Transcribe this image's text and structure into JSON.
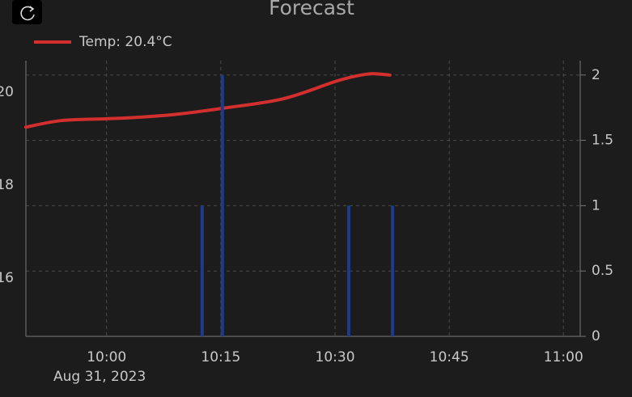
{
  "chart_data": {
    "type": "line",
    "title": "Forecast",
    "xlim": [
      589.4,
      662.2
    ],
    "xticks": [
      {
        "value": 600,
        "label": "10:00"
      },
      {
        "value": 615,
        "label": "10:15"
      },
      {
        "value": 630,
        "label": "10:30"
      },
      {
        "value": 645,
        "label": "10:45"
      },
      {
        "value": 660,
        "label": "11:00"
      }
    ],
    "xtick_date": "Aug 31, 2023",
    "ylim": [
      14.75,
      20.68
    ],
    "yticks": [
      16,
      18,
      20
    ],
    "y2lim": [
      0,
      2.11
    ],
    "y2ticks": [
      0,
      0.5,
      1,
      1.5,
      2
    ],
    "grid": true,
    "series": [
      {
        "name": "Temp: 20.4°C",
        "color": "#d32f2f",
        "type": "line",
        "x": [
          589.4,
          594,
          600,
          604,
          609.4,
          615,
          623.2,
          630,
          632.8,
          634.9,
          637.2
        ],
        "values": [
          19.25,
          19.39,
          19.43,
          19.46,
          19.53,
          19.65,
          19.86,
          20.23,
          20.35,
          20.4,
          20.37
        ]
      },
      {
        "color": "#1e3a8a",
        "type": "bar",
        "axis": "y2",
        "x": [
          612.55,
          615.2,
          631.8,
          637.55
        ],
        "values": [
          1,
          2,
          1,
          1
        ]
      }
    ]
  }
}
